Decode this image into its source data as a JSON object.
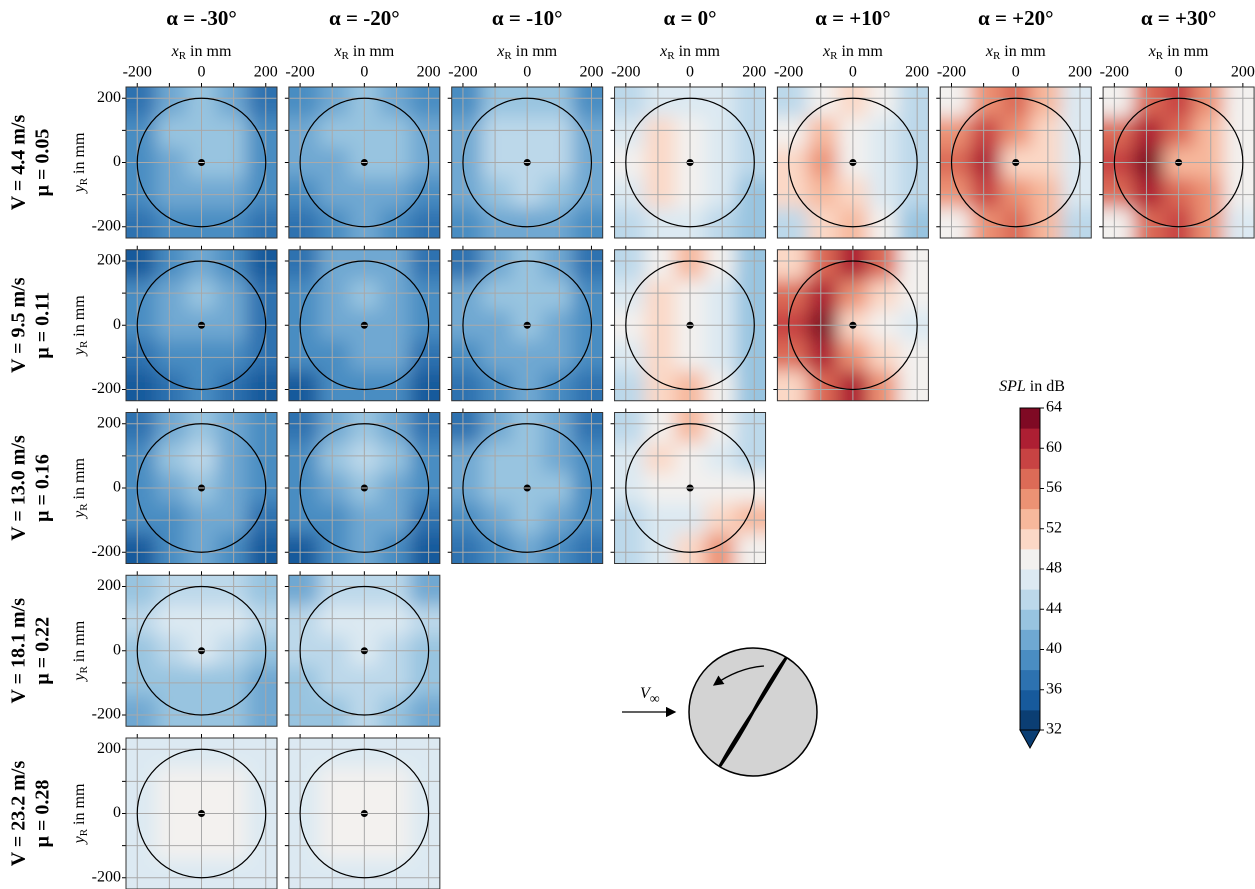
{
  "chart_data": {
    "type": "contour",
    "columns": [
      "α = -30°",
      "α = -20°",
      "α = -10°",
      "α = 0°",
      "α = +10°",
      "α = +20°",
      "α = +30°"
    ],
    "rows": [
      {
        "velocity": "V = 4.4 m/s",
        "mu": "μ = 0.05"
      },
      {
        "velocity": "V = 9.5 m/s",
        "mu": "μ = 0.11"
      },
      {
        "velocity": "V = 13.0 m/s",
        "mu": "μ = 0.16"
      },
      {
        "velocity": "V = 18.1 m/s",
        "mu": "μ = 0.22"
      },
      {
        "velocity": "V = 23.2 m/s",
        "mu": "μ = 0.28"
      }
    ],
    "xlabel": {
      "symbol": "x",
      "subscript": "R",
      "text": " in mm"
    },
    "ylabel": {
      "symbol": "y",
      "subscript": "R",
      "text": " in mm"
    },
    "xlim": [
      -235,
      235
    ],
    "ylim": [
      -235,
      235
    ],
    "xticks": [
      -200,
      0,
      200
    ],
    "yticks": [
      -200,
      0,
      200
    ],
    "minor_ticks": [
      -100,
      100
    ],
    "grid": true,
    "circle_radius": 200,
    "panels": [
      [
        [
          [
            37,
            40,
            42,
            40,
            37
          ],
          [
            39,
            42,
            43,
            42,
            39
          ],
          [
            39,
            41,
            42,
            42,
            39
          ],
          [
            38,
            40,
            40,
            40,
            38
          ],
          [
            36,
            38,
            39,
            38,
            36
          ]
        ],
        [
          [
            38,
            41,
            42,
            41,
            38
          ],
          [
            40,
            42,
            43,
            42,
            40
          ],
          [
            40,
            41,
            43,
            42,
            40
          ],
          [
            39,
            41,
            41,
            41,
            39
          ],
          [
            37,
            39,
            40,
            39,
            37
          ]
        ],
        [
          [
            39,
            42,
            43,
            42,
            39
          ],
          [
            41,
            44,
            44,
            44,
            41
          ],
          [
            41,
            44,
            45,
            44,
            41
          ],
          [
            40,
            43,
            44,
            42,
            40
          ],
          [
            38,
            40,
            41,
            40,
            38
          ]
        ],
        [
          [
            44,
            46,
            47,
            46,
            44
          ],
          [
            47,
            50,
            49,
            47,
            44
          ],
          [
            48,
            50,
            48,
            46,
            44
          ],
          [
            47,
            50,
            48,
            46,
            43
          ],
          [
            44,
            47,
            47,
            45,
            42
          ]
        ],
        [
          [
            45,
            48,
            51,
            49,
            45
          ],
          [
            49,
            53,
            49,
            47,
            44
          ],
          [
            51,
            54,
            48,
            46,
            44
          ],
          [
            50,
            53,
            50,
            46,
            44
          ],
          [
            45,
            50,
            52,
            48,
            43
          ]
        ],
        [
          [
            48,
            54,
            56,
            52,
            47
          ],
          [
            54,
            59,
            55,
            51,
            47
          ],
          [
            56,
            60,
            50,
            50,
            47
          ],
          [
            55,
            59,
            55,
            52,
            47
          ],
          [
            48,
            55,
            57,
            53,
            45
          ]
        ],
        [
          [
            49,
            56,
            59,
            55,
            48
          ],
          [
            56,
            61,
            57,
            53,
            48
          ],
          [
            58,
            62,
            52,
            52,
            48
          ],
          [
            56,
            60,
            57,
            54,
            48
          ],
          [
            49,
            56,
            58,
            54,
            46
          ]
        ]
      ],
      [
        [
          [
            35,
            39,
            41,
            39,
            35
          ],
          [
            38,
            41,
            42,
            40,
            37
          ],
          [
            38,
            40,
            41,
            40,
            37
          ],
          [
            37,
            39,
            39,
            39,
            36
          ],
          [
            34,
            37,
            38,
            37,
            34
          ]
        ],
        [
          [
            36,
            40,
            41,
            40,
            36
          ],
          [
            39,
            41,
            42,
            41,
            38
          ],
          [
            39,
            40,
            41,
            41,
            38
          ],
          [
            38,
            39,
            40,
            40,
            37
          ],
          [
            35,
            38,
            39,
            38,
            35
          ]
        ],
        [
          [
            37,
            41,
            43,
            41,
            37
          ],
          [
            40,
            43,
            42,
            42,
            39
          ],
          [
            40,
            41,
            43,
            41,
            39
          ],
          [
            39,
            41,
            41,
            41,
            38
          ],
          [
            36,
            39,
            41,
            39,
            36
          ]
        ],
        [
          [
            44,
            49,
            53,
            48,
            43
          ],
          [
            47,
            51,
            48,
            46,
            43
          ],
          [
            48,
            50,
            48,
            46,
            43
          ],
          [
            47,
            50,
            48,
            46,
            43
          ],
          [
            44,
            50,
            53,
            48,
            43
          ]
        ],
        [
          [
            51,
            57,
            60,
            56,
            49
          ],
          [
            57,
            61,
            54,
            51,
            48
          ],
          [
            59,
            62,
            50,
            49,
            47
          ],
          [
            57,
            61,
            54,
            51,
            48
          ],
          [
            51,
            57,
            61,
            55,
            49
          ]
        ]
      ],
      [
        [
          [
            37,
            41,
            43,
            41,
            38
          ],
          [
            39,
            42,
            44,
            41,
            39
          ],
          [
            39,
            41,
            42,
            41,
            38
          ],
          [
            38,
            39,
            40,
            40,
            37
          ],
          [
            35,
            38,
            40,
            38,
            35
          ]
        ],
        [
          [
            37,
            41,
            43,
            41,
            37
          ],
          [
            39,
            42,
            44,
            42,
            39
          ],
          [
            39,
            41,
            42,
            41,
            38
          ],
          [
            38,
            39,
            40,
            40,
            37
          ],
          [
            35,
            38,
            40,
            38,
            35
          ]
        ],
        [
          [
            37,
            41,
            42,
            41,
            37
          ],
          [
            40,
            43,
            42,
            41,
            39
          ],
          [
            40,
            42,
            43,
            42,
            39
          ],
          [
            39,
            41,
            42,
            40,
            38
          ],
          [
            36,
            39,
            40,
            39,
            36
          ]
        ],
        [
          [
            45,
            49,
            53,
            49,
            44
          ],
          [
            47,
            50,
            48,
            46,
            45
          ],
          [
            47,
            48,
            48,
            48,
            48
          ],
          [
            45,
            46,
            47,
            50,
            52
          ],
          [
            44,
            46,
            51,
            55,
            48
          ]
        ]
      ],
      [
        [
          [
            42,
            44,
            45,
            44,
            42
          ],
          [
            44,
            46,
            47,
            46,
            44
          ],
          [
            43,
            45,
            46,
            44,
            42
          ],
          [
            42,
            43,
            43,
            43,
            41
          ],
          [
            41,
            42,
            43,
            42,
            40
          ]
        ],
        [
          [
            41,
            44,
            45,
            44,
            41
          ],
          [
            44,
            46,
            46,
            46,
            44
          ],
          [
            44,
            45,
            46,
            45,
            43
          ],
          [
            43,
            44,
            45,
            44,
            42
          ],
          [
            42,
            43,
            44,
            43,
            41
          ]
        ]
      ],
      [
        [
          [
            46,
            47,
            47,
            47,
            46
          ],
          [
            47,
            48,
            48,
            48,
            47
          ],
          [
            47,
            48,
            49,
            48,
            47
          ],
          [
            47,
            48,
            48,
            48,
            47
          ],
          [
            46,
            47,
            47,
            47,
            46
          ]
        ],
        [
          [
            46,
            47,
            47,
            47,
            46
          ],
          [
            47,
            48,
            48,
            49,
            47
          ],
          [
            47,
            48,
            48,
            48,
            47
          ],
          [
            47,
            48,
            48,
            48,
            47
          ],
          [
            46,
            47,
            47,
            47,
            46
          ]
        ]
      ]
    ],
    "colorbar": {
      "label": {
        "symbol": "SPL",
        "text": " in dB"
      },
      "lim": [
        32,
        64
      ],
      "ticks": [
        32,
        36,
        40,
        44,
        48,
        52,
        56,
        60,
        64
      ],
      "level_step": 2,
      "colors": [
        "#0b3e73",
        "#175a9c",
        "#2d72b0",
        "#4a8dc2",
        "#6fa8d2",
        "#98c4e0",
        "#bcd8ea",
        "#dce9f2",
        "#f3f1ef",
        "#fbd8c6",
        "#f7b89c",
        "#ec9274",
        "#dc6b57",
        "#c84343",
        "#ad1f33",
        "#7f0a24"
      ]
    },
    "inflow_label": {
      "symbol": "V",
      "subscript": "∞"
    }
  }
}
